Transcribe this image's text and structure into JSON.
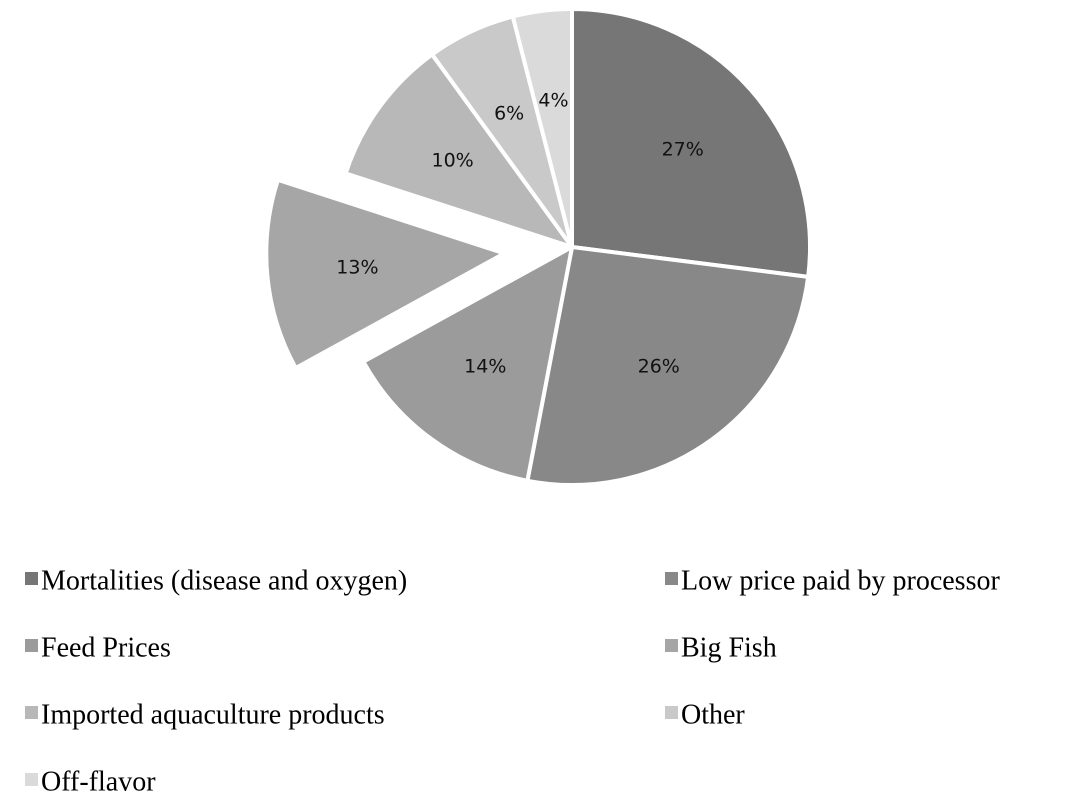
{
  "chart_data": {
    "type": "pie",
    "legend": "bottom",
    "slices": [
      {
        "label": "Mortalities (disease and oxygen)",
        "value": 27,
        "display": "27%",
        "color": "#767676",
        "exploded": false
      },
      {
        "label": "Low price paid by processor",
        "value": 26,
        "display": "26%",
        "color": "#888888",
        "exploded": false
      },
      {
        "label": "Feed Prices",
        "value": 14,
        "display": "14%",
        "color": "#9b9b9b",
        "exploded": false
      },
      {
        "label": "Big Fish",
        "value": 13,
        "display": "13%",
        "color": "#a6a6a6",
        "exploded": true
      },
      {
        "label": "Imported aquaculture products",
        "value": 10,
        "display": "10%",
        "color": "#b8b8b8",
        "exploded": false
      },
      {
        "label": "Other",
        "value": 6,
        "display": "6%",
        "color": "#c9c9c9",
        "exploded": false
      },
      {
        "label": "Off-flavor",
        "value": 4,
        "display": "4%",
        "color": "#dadada",
        "exploded": false
      }
    ]
  }
}
